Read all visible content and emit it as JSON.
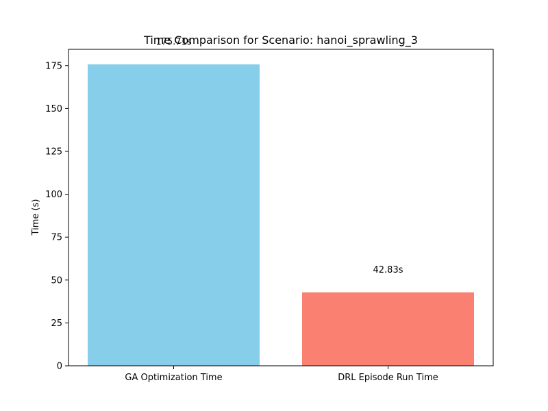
{
  "chart_data": {
    "type": "bar",
    "title": "Time Comparison for Scenario: hanoi_sprawling_3",
    "xlabel": "",
    "ylabel": "Time (s)",
    "categories": [
      "GA Optimization Time",
      "DRL Episode Run Time"
    ],
    "values": [
      175.71,
      42.83
    ],
    "data_labels": [
      "175.71s",
      "42.83s"
    ],
    "colors": [
      "#87ceeb",
      "#fa8072"
    ],
    "ylim": [
      0,
      184.5
    ],
    "yticks": [
      0,
      25,
      50,
      75,
      100,
      125,
      150,
      175
    ],
    "grid": false,
    "legend": "none"
  }
}
